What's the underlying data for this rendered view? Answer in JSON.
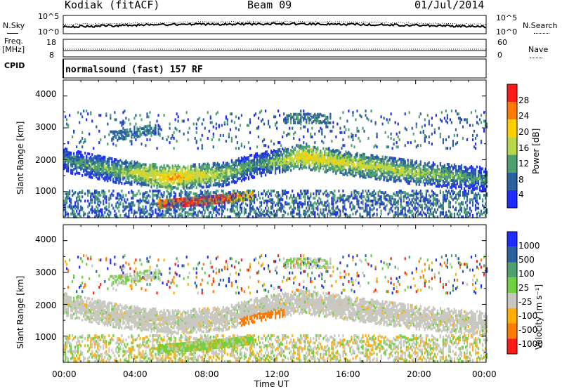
{
  "header": {
    "radar": "Kodiak (fitACF)",
    "beam": "Beam 09",
    "date": "01/Jul/2014"
  },
  "noise_panel": {
    "left_label": "N.Sky",
    "right_label": "N.Search",
    "left_ticks": [
      "10^5",
      "10^0"
    ],
    "right_ticks": [
      "10^5",
      "10^0"
    ]
  },
  "freq_panel": {
    "left_label_line1": "Freq.",
    "left_label_line2": "[MHz]",
    "right_label": "Nave",
    "left_ticks": [
      "18",
      "8"
    ],
    "right_ticks": [
      "60",
      "0"
    ]
  },
  "cpid_panel": {
    "label": "CPID",
    "text": "normalsound (fast) 157 RF"
  },
  "chart_data": [
    {
      "type": "heatmap",
      "panel": "power",
      "ylabel": "Slant Range [km]",
      "colorbar_label": "Power [dB]",
      "colorbar_ticks": [
        "28",
        "24",
        "20",
        "16",
        "12",
        "8",
        "4"
      ],
      "colorbar_colors": [
        "#ff1a1a",
        "#ff7a00",
        "#ffd000",
        "#b8d84a",
        "#4fa070",
        "#2a5fa0",
        "#1f2bff"
      ],
      "yticks": [
        "4000",
        "3000",
        "2000",
        "1000"
      ],
      "ylim": [
        180,
        4500
      ],
      "xlim": [
        "00:00",
        "24:00"
      ],
      "features": [
        {
          "name": "main band",
          "x": [
            0,
            3,
            6,
            9,
            11,
            13.5,
            16,
            20,
            24
          ],
          "y": [
            2050,
            1700,
            1500,
            1600,
            1900,
            2150,
            1950,
            1650,
            1450
          ],
          "power_db": [
            12,
            14,
            22,
            16,
            12,
            20,
            18,
            16,
            12
          ]
        },
        {
          "name": "lower echo",
          "x": [
            5.5,
            7,
            9,
            10.5
          ],
          "y": [
            650,
            720,
            820,
            920
          ],
          "power_db": [
            24,
            28,
            26,
            20
          ]
        },
        {
          "name": "upper patch",
          "x": [
            3,
            4,
            5
          ],
          "y": [
            2800,
            2900,
            3000
          ],
          "power_db": [
            8,
            8,
            8
          ]
        }
      ]
    },
    {
      "type": "heatmap",
      "panel": "velocity",
      "ylabel": "Slant Range [km]",
      "colorbar_label": "Velocity [m s⁻¹]",
      "colorbar_ticks": [
        "1000",
        "500",
        "100",
        "25",
        "-25",
        "-100",
        "-500",
        "-1000"
      ],
      "colorbar_colors": [
        "#1f2bff",
        "#2a5fa0",
        "#4fa070",
        "#70d040",
        "#c8c8c0",
        "#ffb000",
        "#ff7a00",
        "#ff1a1a"
      ],
      "yticks": [
        "4000",
        "3000",
        "2000",
        "1000"
      ],
      "ylim": [
        180,
        4500
      ],
      "xlim": [
        "00:00",
        "24:00"
      ],
      "xticks": [
        "00:00",
        "04:00",
        "08:00",
        "12:00",
        "16:00",
        "20:00",
        "00:00"
      ],
      "xlabel": "Time UT"
    }
  ]
}
